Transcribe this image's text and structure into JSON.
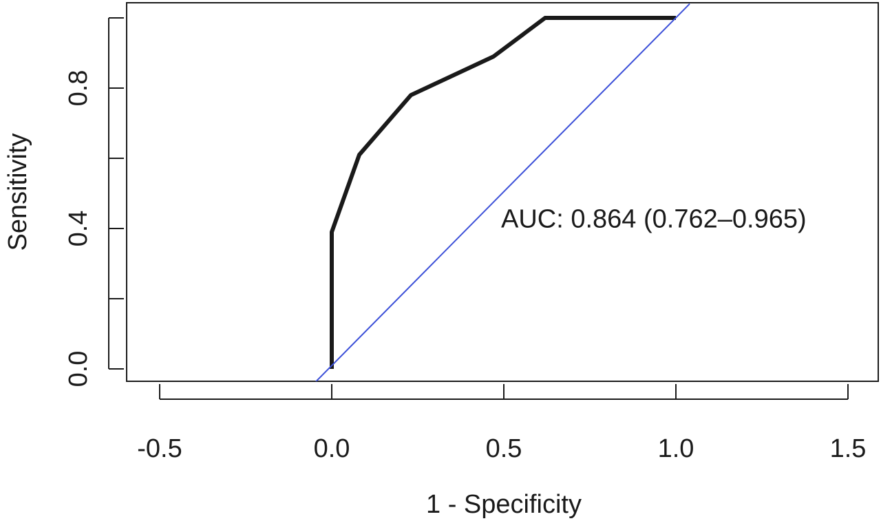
{
  "chart_data": {
    "type": "line",
    "title": "",
    "xlabel": "1 - Specificity",
    "ylabel": "Sensitivity",
    "xlim": [
      -0.5,
      1.5
    ],
    "ylim": [
      0.0,
      1.0
    ],
    "x_ticks": [
      -0.5,
      0.0,
      0.5,
      1.0,
      1.5
    ],
    "x_tick_labels": [
      "-0.5",
      "0.0",
      "0.5",
      "1.0",
      "1.5"
    ],
    "y_ticks": [
      0.0,
      0.2,
      0.4,
      0.6,
      0.8,
      1.0
    ],
    "y_tick_labels": [
      "0.0",
      "",
      "0.4",
      "",
      "0.8",
      ""
    ],
    "grid": false,
    "legend": "none",
    "series": [
      {
        "color": "#1a1a1a",
        "x": [
          0.0,
          0.0,
          0.08,
          0.23,
          0.47,
          0.62,
          1.0
        ],
        "y": [
          0.0,
          0.39,
          0.61,
          0.78,
          0.89,
          1.0,
          1.0
        ]
      },
      {
        "color": "#3b4fd8",
        "x": [
          -0.05,
          1.04
        ],
        "y": [
          -0.04,
          1.04
        ]
      }
    ],
    "annotations": [
      {
        "text": "AUC: 0.864 (0.762–0.965)",
        "x": 0.5,
        "y": 0.45
      }
    ]
  }
}
